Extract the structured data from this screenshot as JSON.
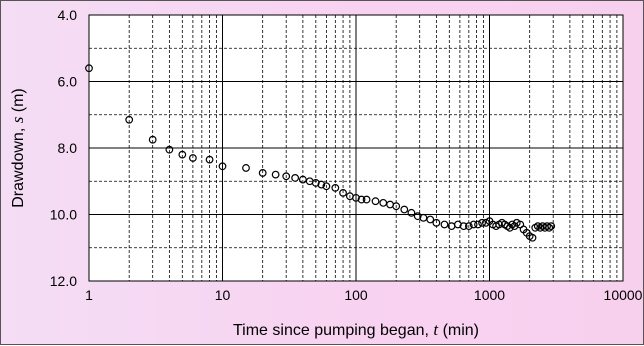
{
  "chart_data": {
    "type": "scatter",
    "title": "",
    "xlabel": {
      "prefix": "Time since pumping began, ",
      "variable": "t",
      "suffix": " (min)"
    },
    "ylabel": {
      "prefix": "Drawdown, ",
      "variable": "s",
      "suffix": " (m)"
    },
    "x_scale": "log",
    "xlim": [
      1,
      10000
    ],
    "ylim": [
      4.0,
      12.0
    ],
    "y_inverted": true,
    "x_ticks": [
      1,
      10,
      100,
      1000,
      10000
    ],
    "x_tick_labels": [
      "1",
      "10",
      "100",
      "1000",
      "10000"
    ],
    "y_ticks": [
      4,
      6,
      8,
      10,
      12
    ],
    "y_tick_labels": [
      "4.0",
      "6.0",
      "8.0",
      "10.0",
      "12.0"
    ],
    "y_minor_gridlines": [
      5,
      7,
      9,
      11
    ],
    "grid": true,
    "legend": "none",
    "marker": "open-circle",
    "colors": {
      "marker": "#000000",
      "grid": "#000000",
      "plot_background": "#ffffff",
      "figure_background": "#f7d6f2"
    },
    "series": [
      {
        "x": [
          1,
          2,
          3,
          4,
          5,
          6,
          8,
          10,
          15,
          20,
          25,
          30,
          35,
          40,
          45,
          50,
          55,
          60,
          70,
          80,
          90,
          100,
          110,
          120,
          140,
          160,
          180,
          200,
          230,
          260,
          290,
          320,
          360,
          400,
          460,
          520,
          580,
          640,
          700,
          760,
          820,
          880,
          940,
          1000,
          1060,
          1120,
          1180,
          1240,
          1300,
          1360,
          1420,
          1480,
          1540,
          1600,
          1700,
          1800,
          1900,
          2000,
          2100,
          2200,
          2300,
          2400,
          2500,
          2600,
          2700,
          2800,
          2900
        ],
        "y": [
          5.6,
          7.15,
          7.75,
          8.05,
          8.2,
          8.3,
          8.35,
          8.55,
          8.6,
          8.75,
          8.8,
          8.85,
          8.9,
          8.95,
          9.0,
          9.05,
          9.1,
          9.15,
          9.2,
          9.35,
          9.45,
          9.5,
          9.55,
          9.55,
          9.6,
          9.65,
          9.7,
          9.75,
          9.85,
          9.95,
          10.05,
          10.1,
          10.15,
          10.25,
          10.3,
          10.35,
          10.3,
          10.35,
          10.35,
          10.3,
          10.3,
          10.25,
          10.25,
          10.2,
          10.3,
          10.35,
          10.3,
          10.25,
          10.3,
          10.35,
          10.4,
          10.3,
          10.35,
          10.25,
          10.3,
          10.45,
          10.55,
          10.65,
          10.7,
          10.4,
          10.35,
          10.4,
          10.35,
          10.4,
          10.35,
          10.4,
          10.35
        ]
      }
    ]
  }
}
